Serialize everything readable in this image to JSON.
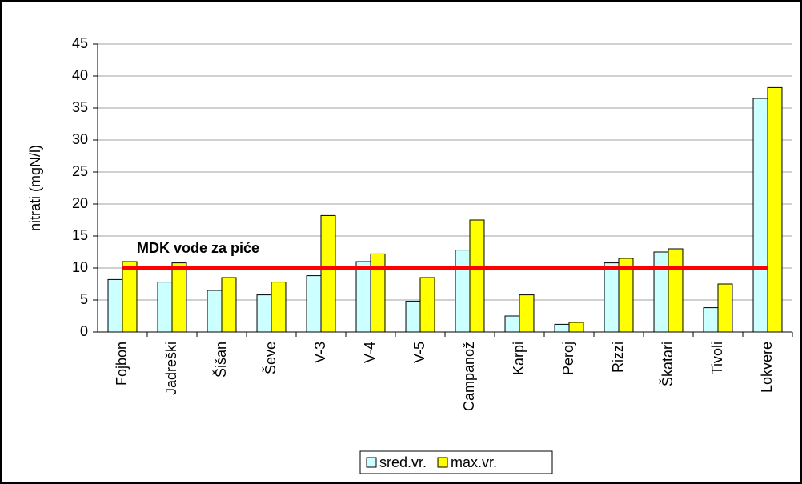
{
  "chart_data": {
    "type": "bar",
    "ylabel": "nitrati (mgN/l)",
    "categories": [
      "Fojbon",
      "Jadreški",
      "Šišan",
      "Ševe",
      "V-3",
      "V-4",
      "V-5",
      "Campanož",
      "Karpi",
      "Peroj",
      "Rizzi",
      "Škatari",
      "Tivoli",
      "Lokvere"
    ],
    "series": [
      {
        "name": "sred.vr.",
        "color": "#ccffff",
        "values": [
          8.2,
          7.8,
          6.5,
          5.8,
          8.8,
          11.0,
          4.8,
          12.8,
          2.5,
          1.2,
          10.8,
          12.5,
          3.8,
          36.5
        ]
      },
      {
        "name": "max.vr.",
        "color": "#ffff00",
        "values": [
          11.0,
          10.8,
          8.5,
          7.8,
          18.2,
          12.2,
          8.5,
          17.5,
          5.8,
          1.5,
          11.5,
          13.0,
          7.5,
          38.2
        ]
      }
    ],
    "reference_line": {
      "value": 10,
      "label": "MDK vode za piće",
      "color": "#ff0000"
    },
    "ylim": [
      0,
      45
    ],
    "yticks": [
      0,
      5,
      10,
      15,
      20,
      25,
      30,
      35,
      40,
      45
    ],
    "grid": true,
    "legend": "bottom"
  }
}
